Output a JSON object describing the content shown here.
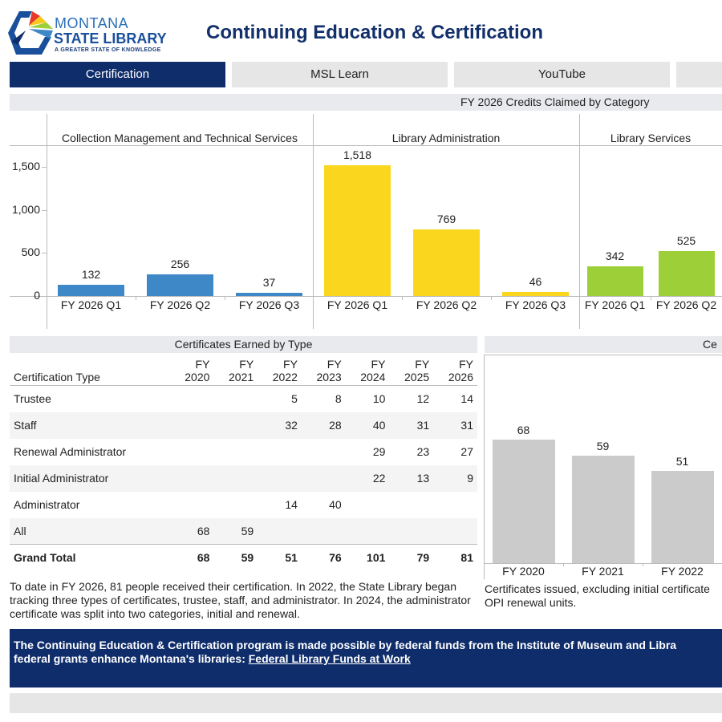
{
  "header": {
    "logo": {
      "line1": "MONTANA",
      "line2": "STATE LIBRARY",
      "tagline": "A GREATER STATE OF KNOWLEDGE"
    },
    "title": "Continuing Education & Certification"
  },
  "tabs": [
    {
      "label": "Certification",
      "active": true
    },
    {
      "label": "MSL Learn"
    },
    {
      "label": "YouTube"
    },
    {
      "label": ""
    }
  ],
  "credits_section": {
    "title": "FY 2026 Credits Claimed by Category"
  },
  "certs_table_section": {
    "title": "Certificates Earned by Type"
  },
  "certs_chart_section": {
    "title": "Ce"
  },
  "colors": {
    "navy": "#0f2d6b",
    "blue": "#3f88c8",
    "yellow": "#fad71e",
    "green": "#9ccf38",
    "gray": "#cbcbcb"
  },
  "chart_data": [
    {
      "type": "bar",
      "title": "FY 2026 Credits Claimed by Category",
      "ylim": [
        0,
        1700
      ],
      "yticks": [
        {
          "v": 0,
          "label": "0"
        },
        {
          "v": 500,
          "label": "500"
        },
        {
          "v": 1000,
          "label": "1,000"
        },
        {
          "v": 1500,
          "label": "1,500"
        }
      ],
      "panels": [
        {
          "name": "Collection Management and Technical Services",
          "color": "#3f88c8",
          "categories": [
            "FY 2026 Q1",
            "FY 2026 Q2",
            "FY 2026 Q3"
          ],
          "values": [
            132,
            256,
            37
          ],
          "labels": [
            "132",
            "256",
            "37"
          ]
        },
        {
          "name": "Library Administration",
          "color": "#fad71e",
          "categories": [
            "FY 2026 Q1",
            "FY 2026 Q2",
            "FY 2026 Q3"
          ],
          "values": [
            1518,
            769,
            46
          ],
          "labels": [
            "1,518",
            "769",
            "46"
          ]
        },
        {
          "name": "Library Services",
          "color": "#9ccf38",
          "categories": [
            "FY 2026 Q1",
            "FY 2026 Q2"
          ],
          "values": [
            342,
            525
          ],
          "labels": [
            "342",
            "525"
          ]
        }
      ]
    },
    {
      "type": "bar",
      "color": "#cbcbcb",
      "categories": [
        "FY 2020",
        "FY 2021",
        "FY 2022"
      ],
      "values": [
        68,
        59,
        51
      ],
      "labels": [
        "68",
        "59",
        "51"
      ]
    }
  ],
  "table": {
    "type_header": "Certification Type",
    "columns": [
      [
        "FY",
        "2020"
      ],
      [
        "FY",
        "2021"
      ],
      [
        "FY",
        "2022"
      ],
      [
        "FY",
        "2023"
      ],
      [
        "FY",
        "2024"
      ],
      [
        "FY",
        "2025"
      ],
      [
        "FY",
        "2026"
      ]
    ],
    "rows": [
      {
        "type": "Trustee",
        "values": [
          "",
          "",
          "5",
          "8",
          "10",
          "12",
          "14"
        ]
      },
      {
        "type": "Staff",
        "values": [
          "",
          "",
          "32",
          "28",
          "40",
          "31",
          "31"
        ]
      },
      {
        "type": "Renewal Administrator",
        "values": [
          "",
          "",
          "",
          "",
          "29",
          "23",
          "27"
        ]
      },
      {
        "type": "Initial Administrator",
        "values": [
          "",
          "",
          "",
          "",
          "22",
          "13",
          "9"
        ]
      },
      {
        "type": "Administrator",
        "values": [
          "",
          "",
          "14",
          "40",
          "",
          "",
          ""
        ]
      },
      {
        "type": "All",
        "values": [
          "68",
          "59",
          "",
          "",
          "",
          "",
          ""
        ]
      }
    ],
    "total": {
      "type": "Grand Total",
      "values": [
        "68",
        "59",
        "51",
        "76",
        "101",
        "79",
        "81"
      ]
    }
  },
  "notes": {
    "table_note": "To date in FY 2026, 81 people received their certification. In 2022, the State Library began tracking three types of certificates, trustee, staff, and administrator. In 2024, the administrator certificate was split into two categories, initial and renewal.",
    "chart_note": "Certificates issued, excluding initial certificate",
    "chart_note2": "OPI renewal units."
  },
  "footer": {
    "text1": "The Continuing Education & Certification program is made possible by federal funds from the Institute of Museum and Libra",
    "text2": "federal grants enhance Montana's libraries: ",
    "link": "Federal Library Funds at Work"
  }
}
